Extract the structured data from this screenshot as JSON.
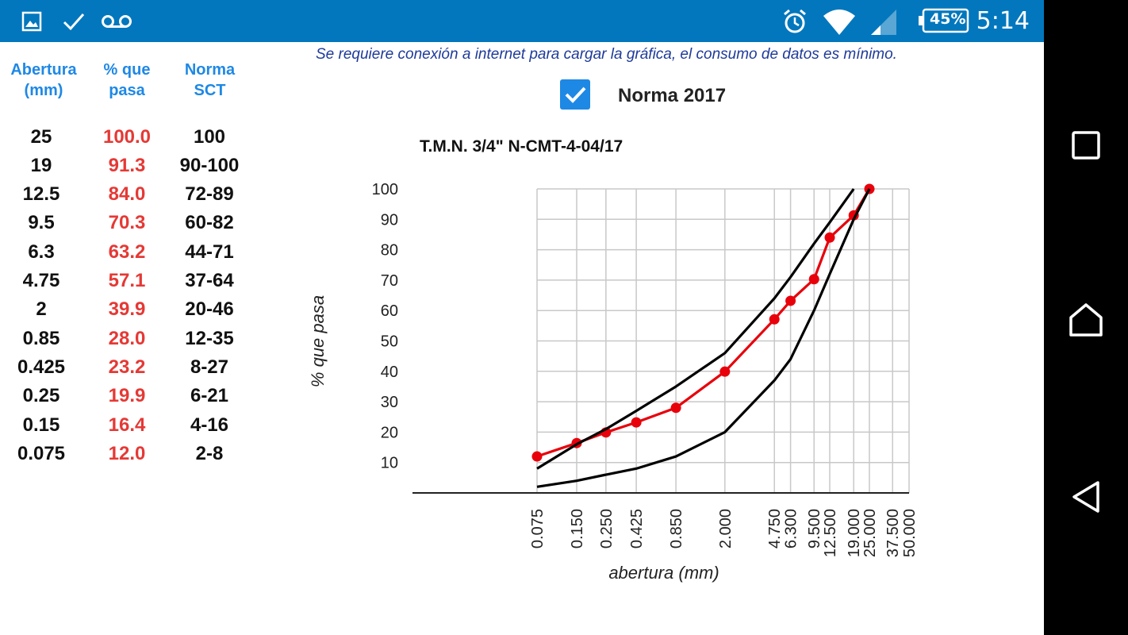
{
  "status_bar": {
    "icons": [
      "image-icon",
      "check-icon",
      "voicemail-icon",
      "alarm-icon",
      "wifi-icon",
      "signal-icon",
      "battery-icon"
    ],
    "battery": "45%",
    "time": "5:14",
    "color": "#0277bd"
  },
  "table": {
    "headers": {
      "abertura": "Abertura\n(mm)",
      "pasa": "% que\npasa",
      "norma": "Norma\nSCT"
    },
    "rows": [
      {
        "abertura": "25",
        "pasa": "100.0",
        "norma": "100"
      },
      {
        "abertura": "19",
        "pasa": "91.3",
        "norma": "90-100"
      },
      {
        "abertura": "12.5",
        "pasa": "84.0",
        "norma": "72-89"
      },
      {
        "abertura": "9.5",
        "pasa": "70.3",
        "norma": "60-82"
      },
      {
        "abertura": "6.3",
        "pasa": "63.2",
        "norma": "44-71"
      },
      {
        "abertura": "4.75",
        "pasa": "57.1",
        "norma": "37-64"
      },
      {
        "abertura": "2",
        "pasa": "39.9",
        "norma": "20-46"
      },
      {
        "abertura": "0.85",
        "pasa": "28.0",
        "norma": "12-35"
      },
      {
        "abertura": "0.425",
        "pasa": "23.2",
        "norma": "8-27"
      },
      {
        "abertura": "0.25",
        "pasa": "19.9",
        "norma": "6-21"
      },
      {
        "abertura": "0.15",
        "pasa": "16.4",
        "norma": "4-16"
      },
      {
        "abertura": "0.075",
        "pasa": "12.0",
        "norma": "2-8"
      }
    ]
  },
  "notice": "Se requiere conexión a internet para cargar la gráfica, el consumo de datos es mínimo.",
  "norma_toggle": {
    "label": "Norma 2017",
    "checked": true
  },
  "chart_data": {
    "type": "line",
    "title": "T.M.N. 3/4\" N-CMT-4-04/17",
    "xlabel": "abertura (mm)",
    "ylabel": "% que pasa",
    "x_scale": "log",
    "x_ticks": [
      "0.075",
      "0.150",
      "0.250",
      "0.425",
      "0.850",
      "2.000",
      "4.750",
      "6.300",
      "9.500",
      "12.500",
      "19.000",
      "25.000",
      "37.500",
      "50.000"
    ],
    "y_ticks": [
      10,
      20,
      30,
      40,
      50,
      60,
      70,
      80,
      90,
      100
    ],
    "ylim": [
      0,
      100
    ],
    "grid": true,
    "series": [
      {
        "values": [
          [
            0.075,
            12.0
          ],
          [
            0.15,
            16.4
          ],
          [
            0.25,
            19.9
          ],
          [
            0.425,
            23.2
          ],
          [
            0.85,
            28.0
          ],
          [
            2,
            39.9
          ],
          [
            4.75,
            57.1
          ],
          [
            6.3,
            63.2
          ],
          [
            9.5,
            70.3
          ],
          [
            12.5,
            84.0
          ],
          [
            19,
            91.3
          ],
          [
            25,
            100.0
          ]
        ],
        "color": "#e8000b",
        "markers": true
      },
      {
        "values": [
          [
            0.075,
            8
          ],
          [
            0.15,
            16
          ],
          [
            0.25,
            21
          ],
          [
            0.425,
            27
          ],
          [
            0.85,
            35
          ],
          [
            2,
            46
          ],
          [
            4.75,
            64
          ],
          [
            6.3,
            71
          ],
          [
            9.5,
            82
          ],
          [
            12.5,
            89
          ],
          [
            19,
            100
          ]
        ],
        "color": "#000000",
        "markers": false
      },
      {
        "values": [
          [
            0.075,
            2
          ],
          [
            0.15,
            4
          ],
          [
            0.25,
            6
          ],
          [
            0.425,
            8
          ],
          [
            0.85,
            12
          ],
          [
            2,
            20
          ],
          [
            4.75,
            37
          ],
          [
            6.3,
            44
          ],
          [
            9.5,
            60
          ],
          [
            12.5,
            72
          ],
          [
            19,
            90
          ],
          [
            25,
            100
          ]
        ],
        "color": "#000000",
        "markers": false
      }
    ]
  },
  "nav_bar": {
    "icons": [
      "recents-icon",
      "home-icon",
      "back-icon"
    ]
  }
}
